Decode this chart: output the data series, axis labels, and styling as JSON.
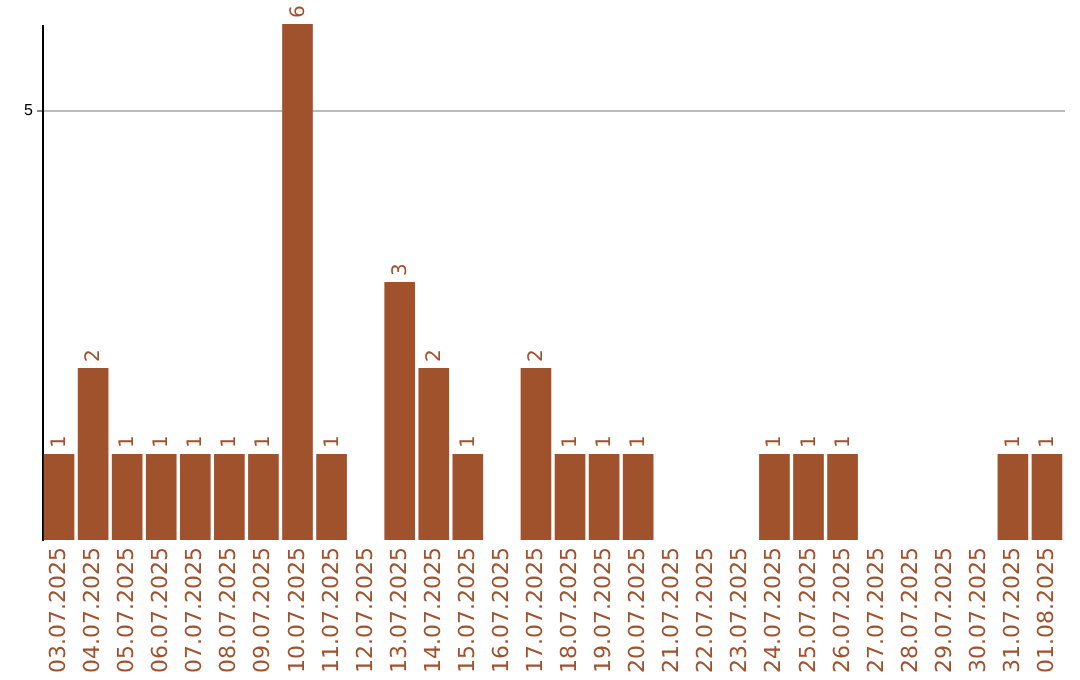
{
  "chart_data": {
    "type": "bar",
    "categories": [
      "03.07.2025",
      "04.07.2025",
      "05.07.2025",
      "06.07.2025",
      "07.07.2025",
      "08.07.2025",
      "09.07.2025",
      "10.07.2025",
      "11.07.2025",
      "12.07.2025",
      "13.07.2025",
      "14.07.2025",
      "15.07.2025",
      "16.07.2025",
      "17.07.2025",
      "18.07.2025",
      "19.07.2025",
      "20.07.2025",
      "21.07.2025",
      "22.07.2025",
      "23.07.2025",
      "24.07.2025",
      "25.07.2025",
      "26.07.2025",
      "27.07.2025",
      "28.07.2025",
      "29.07.2025",
      "30.07.2025",
      "31.07.2025",
      "01.08.2025"
    ],
    "values": [
      1,
      2,
      1,
      1,
      1,
      1,
      1,
      6,
      1,
      null,
      3,
      2,
      1,
      null,
      2,
      1,
      1,
      1,
      null,
      null,
      null,
      1,
      1,
      1,
      null,
      null,
      null,
      null,
      1,
      1
    ],
    "color": "#a0522d",
    "ylim": [
      0,
      6
    ],
    "yticks": [
      5
    ],
    "grid": "y",
    "data_labels": true
  }
}
